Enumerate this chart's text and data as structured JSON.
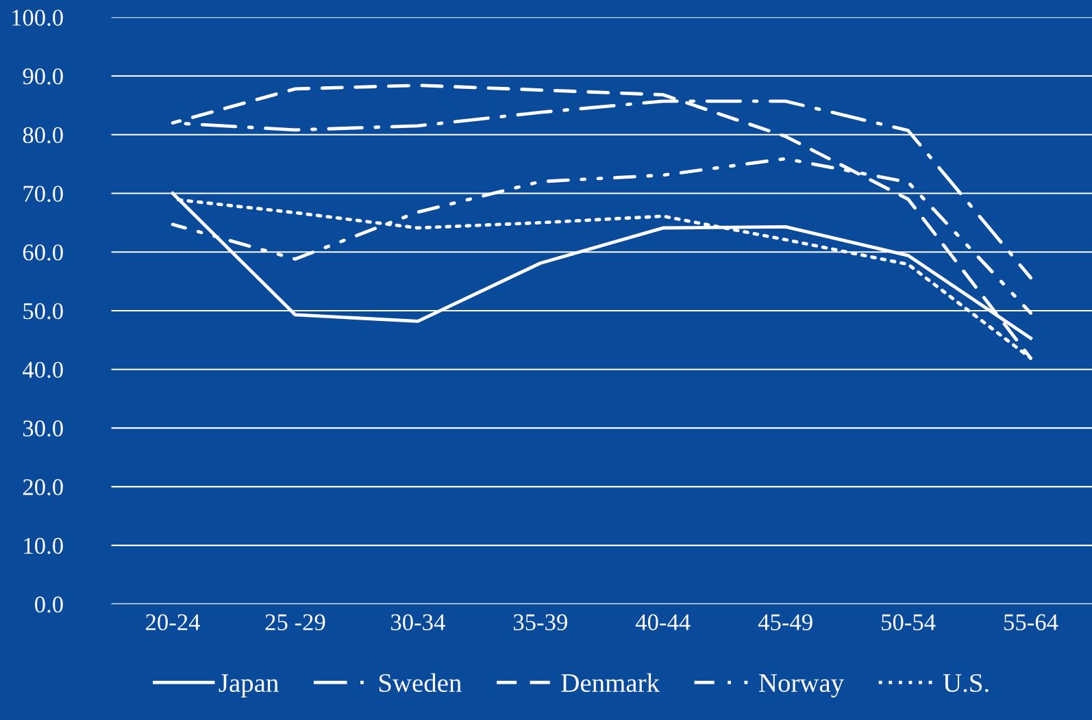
{
  "chart_data": {
    "type": "line",
    "categories": [
      "20-24",
      "25 -29",
      "30-34",
      "35-39",
      "40-44",
      "45-49",
      "50-54",
      "55-64"
    ],
    "series": [
      {
        "name": "Japan",
        "color": "#ffffff",
        "line_style": "solid",
        "values": [
          70.0,
          49.3,
          48.2,
          58.1,
          64.1,
          64.3,
          59.4,
          45.3
        ]
      },
      {
        "name": "Sweden",
        "color": "#ffffff",
        "line_style": "longdashdot",
        "values": [
          82.0,
          80.8,
          81.5,
          83.8,
          85.7,
          85.7,
          80.7,
          55.6
        ]
      },
      {
        "name": "Denmark",
        "color": "#ffffff",
        "line_style": "dashed",
        "values": [
          82.0,
          87.8,
          88.4,
          87.6,
          86.8,
          79.7,
          69.0,
          41.9
        ]
      },
      {
        "name": "Norway",
        "color": "#ffffff",
        "line_style": "dashdotdot",
        "values": [
          64.7,
          58.8,
          66.8,
          72.0,
          73.1,
          75.9,
          71.9,
          49.6
        ]
      },
      {
        "name": "U.S.",
        "color": "#ffffff",
        "line_style": "dotted",
        "values": [
          69.0,
          66.7,
          64.1,
          65.0,
          66.1,
          62.1,
          57.9,
          41.9
        ]
      }
    ],
    "ylim": [
      0,
      100
    ],
    "yticks": [
      {
        "value": 0,
        "label": "0.0"
      },
      {
        "value": 10,
        "label": "10.0"
      },
      {
        "value": 20,
        "label": "20.0"
      },
      {
        "value": 30,
        "label": "30.0"
      },
      {
        "value": 40,
        "label": "40.0"
      },
      {
        "value": 50,
        "label": "50.0"
      },
      {
        "value": 60,
        "label": "60.0"
      },
      {
        "value": 70,
        "label": "70.0"
      },
      {
        "value": 80,
        "label": "80.0"
      },
      {
        "value": 90,
        "label": "90.0"
      },
      {
        "value": 100,
        "label": "100.0"
      }
    ],
    "grid": "y",
    "legend": "bottom",
    "marker": "none"
  }
}
